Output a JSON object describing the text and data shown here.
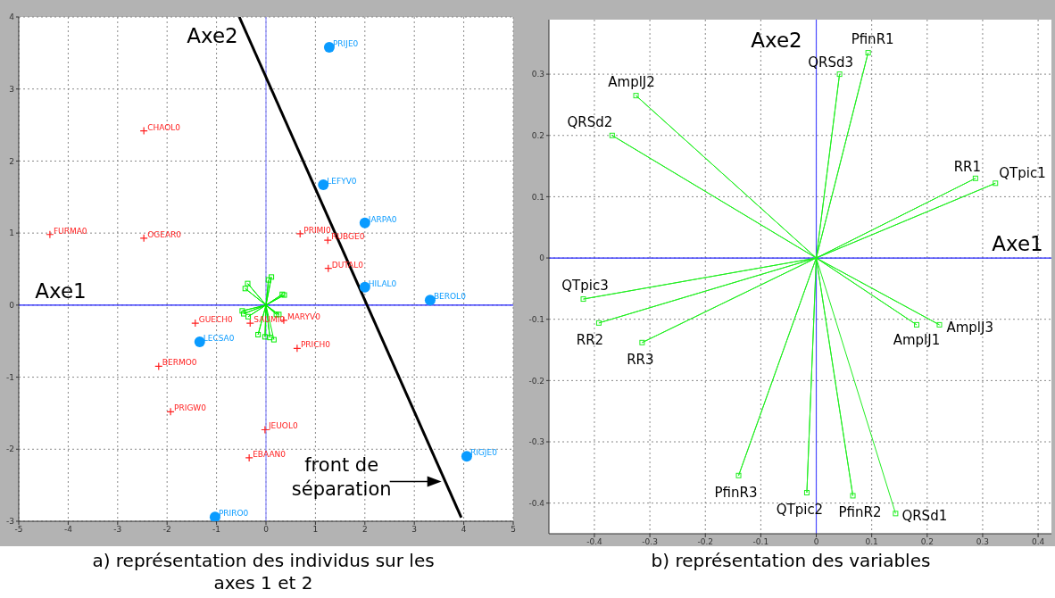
{
  "chart_data": [
    {
      "type": "scatter",
      "title": "a) représentation des individus sur les axes 1 et 2",
      "xlim": [
        -5,
        5
      ],
      "ylim": [
        -3,
        4
      ],
      "xticks": [
        -5,
        -4,
        -3,
        -2,
        -1,
        0,
        1,
        2,
        3,
        4,
        5
      ],
      "yticks": [
        -3,
        -2,
        -1,
        0,
        1,
        2,
        3,
        4
      ],
      "grid": true,
      "ref_lines": [
        {
          "axis": "x",
          "value": 0,
          "color": "#8a8aff"
        },
        {
          "axis": "y",
          "value": 0,
          "color": "#2020ff"
        }
      ],
      "annotations": [
        "Axe1",
        "Axe2",
        {
          "text": "front de séparation",
          "x": 3.55,
          "y": -2.45
        }
      ],
      "series": [
        {
          "marker": "cross",
          "color": "#ff2020",
          "x": [
            -2.47,
            -4.37,
            -2.47,
            0.69,
            1.25,
            1.26,
            -1.43,
            -2.17,
            -1.93,
            -0.32,
            0.36,
            0.63,
            -0.02,
            -0.34
          ],
          "values": [
            2.42,
            0.98,
            0.93,
            0.99,
            0.9,
            0.51,
            -0.25,
            -0.85,
            -1.48,
            -0.25,
            -0.21,
            -0.6,
            -1.73,
            -2.12
          ],
          "value_labels": [
            "CHAOL0",
            "FURMA0",
            "OGEAR0",
            "PRIMI0",
            "RUBGE0",
            "DUTAL0",
            "GUECH0",
            "BERMO0",
            "PRIGW0",
            "SAUMI0",
            "MARYV0",
            "PRICH0",
            "JEUOL0",
            "EBAAN0"
          ]
        },
        {
          "marker": "circle",
          "color": "#0a9bff",
          "x": [
            1.28,
            1.16,
            2.0,
            2.0,
            3.32,
            -1.34,
            4.06,
            -1.03
          ],
          "values": [
            3.58,
            1.67,
            1.14,
            0.25,
            0.07,
            -0.51,
            -2.1,
            -2.94
          ],
          "value_labels": [
            "PRIJE0",
            "LEFYV0",
            "IARPA0",
            "HILAL0",
            "BEROL0",
            "LECSA0",
            "RIGJE0",
            "PRIRO0"
          ]
        },
        {
          "type": "line",
          "color": "#00ee00",
          "x": [
            0,
            0.11,
            0,
            0.05,
            0,
            -0.37,
            0,
            -0.42,
            0,
            0.33,
            0,
            0.37,
            0,
            -0.48,
            0,
            -0.45,
            0,
            -0.36,
            0,
            0.21,
            0,
            0.26,
            0,
            -0.16,
            0,
            -0.02,
            0,
            0.08,
            0,
            0.16
          ],
          "values": [
            0,
            0.39,
            0,
            0.35,
            0,
            0.3,
            0,
            0.23,
            0,
            0.15,
            0,
            0.14,
            0,
            -0.08,
            0,
            -0.12,
            0,
            -0.16,
            0,
            -0.13,
            0,
            -0.13,
            0,
            -0.41,
            0,
            -0.44,
            0,
            -0.45,
            0,
            -0.48
          ]
        },
        {
          "marker": "square",
          "color": "#00ee00",
          "x": [
            0.11,
            0.05,
            -0.37,
            -0.42,
            0.33,
            0.37,
            -0.48,
            -0.45,
            -0.36,
            0.21,
            0.26,
            -0.16,
            -0.02,
            0.08,
            0.16
          ],
          "values": [
            0.39,
            0.35,
            0.3,
            0.23,
            0.15,
            0.14,
            -0.08,
            -0.12,
            -0.16,
            -0.13,
            -0.13,
            -0.41,
            -0.44,
            -0.45,
            -0.48
          ]
        },
        {
          "type": "line",
          "color": "#000000",
          "x": [
            -0.54,
            3.95
          ],
          "values": [
            4,
            -2.95
          ]
        }
      ]
    },
    {
      "type": "scatter",
      "title": "b) représentation des variables",
      "xlim": [
        -0.482,
        0.424
      ],
      "ylim": [
        -0.45,
        0.389
      ],
      "xticks": [
        -0.4,
        -0.3,
        -0.2,
        -0.1,
        0,
        0.1,
        0.2,
        0.3,
        0.4
      ],
      "yticks": [
        -0.4,
        -0.3,
        -0.2,
        -0.1,
        0,
        0.1,
        0.2,
        0.3
      ],
      "grid": true,
      "ref_lines": [
        {
          "axis": "x",
          "value": 0,
          "color": "#4a4aff"
        },
        {
          "axis": "y",
          "value": 0,
          "color": "#2828ff"
        }
      ],
      "annotations": [
        "Axe2",
        "Axe1"
      ],
      "series": [
        {
          "type": "line",
          "color": "#22ee22",
          "x": [
            0,
            0.0935,
            0,
            0.042,
            0,
            -0.325,
            0,
            -0.368,
            0,
            0.287,
            0,
            0.323,
            0,
            -0.42,
            0,
            -0.392,
            0,
            -0.314,
            0,
            0.181,
            0,
            0.222,
            0,
            -0.14,
            0,
            -0.017,
            0,
            0.066,
            0,
            0.143
          ],
          "values": [
            0,
            0.335,
            0,
            0.3,
            0,
            0.265,
            0,
            0.2,
            0,
            0.13,
            0,
            0.122,
            0,
            -0.067,
            0,
            -0.106,
            0,
            -0.138,
            0,
            -0.109,
            0,
            -0.109,
            0,
            -0.355,
            0,
            -0.383,
            0,
            -0.388,
            0,
            -0.417
          ]
        },
        {
          "marker": "square",
          "color": "#22ee22",
          "x": [
            0.0935,
            0.042,
            -0.325,
            -0.368,
            0.287,
            0.323,
            -0.42,
            -0.392,
            -0.314,
            0.181,
            0.222,
            -0.14,
            -0.017,
            0.066,
            0.143
          ],
          "values": [
            0.335,
            0.3,
            0.265,
            0.2,
            0.13,
            0.122,
            -0.067,
            -0.106,
            -0.138,
            -0.109,
            -0.109,
            -0.355,
            -0.383,
            -0.388,
            -0.417
          ],
          "value_labels": [
            "PfinR1",
            "QRSd3",
            "AmplJ2",
            "QRSd2",
            "RR1",
            "QTpic1",
            "QTpic3",
            "RR2",
            "RR3",
            "AmplJ1",
            "AmplJ3",
            "PfinR3",
            "QTpic2",
            "PfinR2",
            "QRSd1"
          ]
        }
      ]
    }
  ]
}
